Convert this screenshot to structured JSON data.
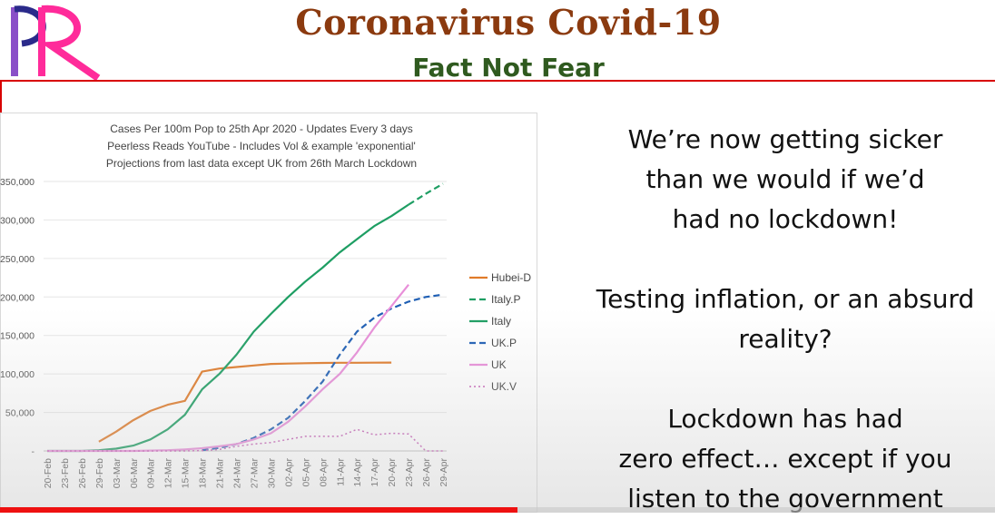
{
  "header": {
    "logo_text": "PR",
    "title": "Coronavirus Covid-19",
    "subtitle": "Fact Not Fear"
  },
  "right_text": {
    "block1": [
      "We’re now getting sicker",
      "than we would if we’d",
      "had no lockdown!"
    ],
    "block2": [
      "Testing inflation, or an absurd",
      "reality?"
    ],
    "block3": [
      "Lockdown has had",
      "zero effect… except if you",
      "listen to the government"
    ]
  },
  "video": {
    "progress": 0.52
  },
  "colors": {
    "title": "#8b3a0f",
    "subtitle": "#2f5a1f",
    "frame": "#d80000",
    "progress": "#ee1111"
  },
  "chart_data": {
    "type": "line",
    "title_lines": [
      "Cases Per 100m Pop to 25th Apr 2020 - Updates Every 3 days",
      "Peerless Reads YouTube - Includes Vol & example 'exponential'",
      "Projections from last data except UK from 26th March Lockdown"
    ],
    "x": [
      "20-Feb",
      "23-Feb",
      "26-Feb",
      "29-Feb",
      "03-Mar",
      "06-Mar",
      "09-Mar",
      "12-Mar",
      "15-Mar",
      "18-Mar",
      "21-Mar",
      "24-Mar",
      "27-Mar",
      "30-Mar",
      "02-Apr",
      "05-Apr",
      "08-Apr",
      "11-Apr",
      "14-Apr",
      "17-Apr",
      "20-Apr",
      "23-Apr",
      "26-Apr",
      "29-Apr"
    ],
    "ylim": [
      0,
      350000
    ],
    "yticks": [
      "-",
      "50,000",
      "100,000",
      "150,000",
      "200,000",
      "250,000",
      "300,000",
      "350,000"
    ],
    "ytick_values": [
      0,
      50000,
      100000,
      150000,
      200000,
      250000,
      300000,
      350000
    ],
    "grid": true,
    "legend_position": "right",
    "series": [
      {
        "name": "Hubei-D",
        "color": "#e07b2a",
        "dash": "solid",
        "values": [
          null,
          null,
          null,
          12000,
          25000,
          40000,
          52000,
          60000,
          65000,
          103000,
          107000,
          109000,
          111000,
          113000,
          113500,
          114000,
          114300,
          114500,
          114600,
          114700,
          114800,
          null,
          null,
          null
        ]
      },
      {
        "name": "Italy.P",
        "color": "#1e9e63",
        "dash": "dashed",
        "values": [
          null,
          null,
          null,
          null,
          null,
          null,
          null,
          null,
          null,
          null,
          null,
          null,
          null,
          null,
          null,
          null,
          null,
          null,
          null,
          null,
          null,
          320000,
          334000,
          347000
        ]
      },
      {
        "name": "Italy",
        "color": "#1e9e63",
        "dash": "solid",
        "values": [
          0,
          0,
          0,
          1000,
          3000,
          7000,
          15000,
          28000,
          47000,
          80000,
          100000,
          125000,
          155000,
          178000,
          200000,
          220000,
          238000,
          258000,
          275000,
          292000,
          305000,
          320000,
          null,
          null
        ]
      },
      {
        "name": "UK.P",
        "color": "#1f5fb4",
        "dash": "dashed",
        "values": [
          null,
          null,
          null,
          null,
          null,
          null,
          null,
          null,
          null,
          1000,
          4000,
          9000,
          17000,
          28000,
          43000,
          65000,
          90000,
          125000,
          155000,
          173000,
          185000,
          194000,
          200000,
          203000
        ]
      },
      {
        "name": "UK",
        "color": "#e88fd9",
        "dash": "solid",
        "values": [
          0,
          0,
          0,
          0,
          0,
          0,
          500,
          1000,
          2000,
          3500,
          6000,
          9000,
          15000,
          23000,
          38000,
          58000,
          80000,
          100000,
          128000,
          160000,
          188000,
          216000,
          null,
          null
        ]
      },
      {
        "name": "UK.V",
        "color": "#c764b8",
        "dash": "dotted",
        "values": [
          0,
          0,
          0,
          0,
          0,
          0,
          0,
          0,
          0,
          500,
          2000,
          6000,
          9000,
          11000,
          15000,
          19000,
          19000,
          19000,
          28000,
          21000,
          23000,
          22000,
          0,
          0
        ]
      }
    ]
  }
}
